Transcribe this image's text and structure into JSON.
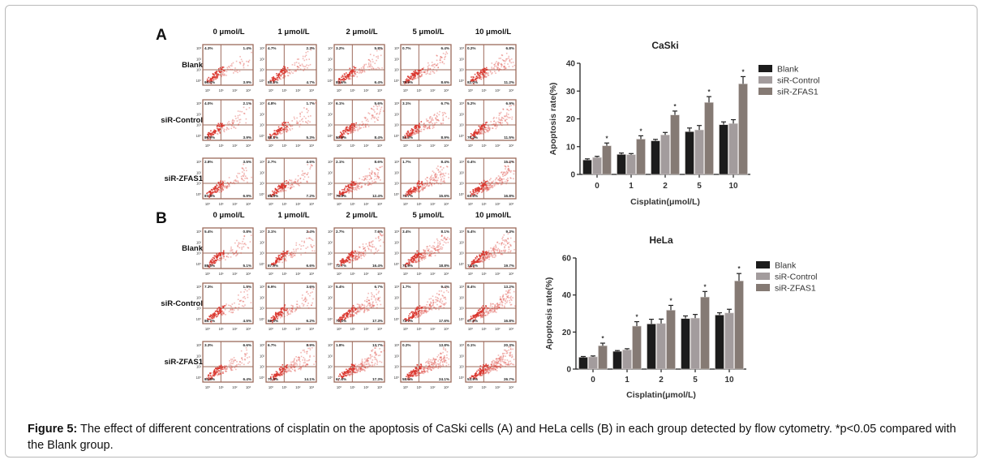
{
  "figure": {
    "caption_label": "Figure 5:",
    "caption_text": " The effect of different concentrations of cisplatin on the apoptosis of CaSki cells (A) and HeLa cells (B) in each group detected by flow cytometry. *p<0.05 compared with the Blank group."
  },
  "flow_cytometry": {
    "concentrations": [
      "0 μmol/L",
      "1 μmol/L",
      "2 μmol/L",
      "5 μmol/L",
      "10 μmol/L"
    ],
    "groups": [
      "Blank",
      "siR-Control",
      "siR-ZFAS1"
    ],
    "axis_ticks": [
      "10⁰",
      "10¹",
      "10²",
      "10³"
    ],
    "dot_color": "#d9342b",
    "frame_color": "#9c6a5a",
    "panels": [
      {
        "letter": "A",
        "cell_line": "CaSki",
        "plots": [
          [
            {
              "ul": "4.3%",
              "ur": "1.4%",
              "ll": "90.4%",
              "lr": "3.9%"
            },
            {
              "ul": "4.7%",
              "ur": "2.3%",
              "ll": "88.3%",
              "lr": "4.7%"
            },
            {
              "ul": "3.2%",
              "ur": "5.8%",
              "ll": "84.6%",
              "lr": "6.4%"
            },
            {
              "ul": "0.7%",
              "ur": "6.4%",
              "ll": "79.9%",
              "lr": "8.6%"
            },
            {
              "ul": "0.2%",
              "ur": "6.8%",
              "ll": "82.0%",
              "lr": "11.2%"
            }
          ],
          [
            {
              "ul": "4.0%",
              "ur": "2.1%",
              "ll": "89.9%",
              "lr": "3.9%"
            },
            {
              "ul": "4.8%",
              "ur": "1.7%",
              "ll": "88.1%",
              "lr": "5.3%"
            },
            {
              "ul": "6.1%",
              "ur": "5.6%",
              "ll": "83.9%",
              "lr": "8.4%"
            },
            {
              "ul": "3.1%",
              "ur": "6.7%",
              "ll": "81.3%",
              "lr": "8.9%"
            },
            {
              "ul": "5.2%",
              "ur": "6.9%",
              "ll": "76.4%",
              "lr": "11.5%"
            }
          ],
          [
            {
              "ul": "2.8%",
              "ur": "3.5%",
              "ll": "87.8%",
              "lr": "6.9%"
            },
            {
              "ul": "2.7%",
              "ur": "4.6%",
              "ll": "85.5%",
              "lr": "7.2%"
            },
            {
              "ul": "2.1%",
              "ur": "8.6%",
              "ll": "76.9%",
              "lr": "12.4%"
            },
            {
              "ul": "1.7%",
              "ur": "8.4%",
              "ll": "73.7%",
              "lr": "15.6%"
            },
            {
              "ul": "0.4%",
              "ur": "15.2%",
              "ll": "67.6%",
              "lr": "16.8%"
            }
          ]
        ]
      },
      {
        "letter": "B",
        "cell_line": "HeLa",
        "plots": [
          [
            {
              "ul": "5.4%",
              "ur": "0.8%",
              "ll": "88.6%",
              "lr": "5.1%"
            },
            {
              "ul": "3.1%",
              "ur": "2.4%",
              "ll": "87.9%",
              "lr": "6.6%"
            },
            {
              "ul": "2.7%",
              "ur": "7.6%",
              "ll": "72.7%",
              "lr": "16.4%"
            },
            {
              "ul": "3.4%",
              "ur": "8.1%",
              "ll": "72.6%",
              "lr": "18.8%"
            },
            {
              "ul": "5.4%",
              "ur": "9.3%",
              "ll": "74.6%",
              "lr": "19.7%"
            }
          ],
          [
            {
              "ul": "7.3%",
              "ur": "1.5%",
              "ll": "86.7%",
              "lr": "4.5%"
            },
            {
              "ul": "6.9%",
              "ur": "3.6%",
              "ll": "86.3%",
              "lr": "6.2%"
            },
            {
              "ul": "5.4%",
              "ur": "6.7%",
              "ll": "70.6%",
              "lr": "17.3%"
            },
            {
              "ul": "1.7%",
              "ur": "9.4%",
              "ll": "72.7%",
              "lr": "17.6%"
            },
            {
              "ul": "8.4%",
              "ur": "13.2%",
              "ll": "67.6%",
              "lr": "16.8%"
            }
          ],
          [
            {
              "ul": "3.3%",
              "ur": "6.6%",
              "ll": "84.6%",
              "lr": "6.4%"
            },
            {
              "ul": "6.7%",
              "ur": "8.9%",
              "ll": "70.0%",
              "lr": "14.1%"
            },
            {
              "ul": "1.8%",
              "ur": "13.7%",
              "ll": "67.6%",
              "lr": "17.3%"
            },
            {
              "ul": "0.2%",
              "ur": "13.8%",
              "ll": "58.6%",
              "lr": "24.1%"
            },
            {
              "ul": "0.1%",
              "ur": "20.3%",
              "ll": "53.9%",
              "lr": "26.7%"
            }
          ]
        ]
      }
    ]
  },
  "chart_data": [
    {
      "type": "bar",
      "title": "CaSki",
      "xlabel": "Cisplatin(μmol/L)",
      "ylabel": "Apoptosis rate(%)",
      "categories": [
        "0",
        "1",
        "2",
        "5",
        "10"
      ],
      "ylim": [
        0,
        40
      ],
      "yticks": [
        0,
        10,
        20,
        30,
        40
      ],
      "legend": "right",
      "grid": false,
      "series": [
        {
          "name": "Blank",
          "color": "#1c1c1c",
          "values": [
            5.2,
            7.2,
            12.1,
            15.4,
            17.9
          ],
          "errors": [
            0.4,
            0.5,
            0.5,
            1.3,
            1.0
          ],
          "significant": [
            false,
            false,
            false,
            false,
            false
          ]
        },
        {
          "name": "siR-Control",
          "color": "#a39c9d",
          "values": [
            6.1,
            7.1,
            14.2,
            16.0,
            18.3
          ],
          "errors": [
            0.4,
            0.4,
            0.9,
            1.6,
            1.4
          ],
          "significant": [
            false,
            false,
            false,
            false,
            false
          ]
        },
        {
          "name": "siR-ZFAS1",
          "color": "#857a74",
          "values": [
            10.3,
            12.7,
            21.4,
            25.9,
            32.6
          ],
          "errors": [
            1.0,
            1.2,
            1.4,
            2.1,
            2.6
          ],
          "significant": [
            true,
            true,
            true,
            true,
            true
          ]
        }
      ]
    },
    {
      "type": "bar",
      "title": "HeLa",
      "xlabel": "Cisplatin(μmol/L)",
      "ylabel": "Apoptosis rate(%)",
      "categories": [
        "0",
        "1",
        "2",
        "5",
        "10"
      ],
      "ylim": [
        0,
        60
      ],
      "yticks": [
        0,
        20,
        40,
        60
      ],
      "legend": "right",
      "grid": false,
      "series": [
        {
          "name": "Blank",
          "color": "#1c1c1c",
          "values": [
            6.4,
            9.6,
            24.4,
            27.3,
            29.2
          ],
          "errors": [
            0.4,
            0.4,
            2.5,
            1.4,
            1.2
          ],
          "significant": [
            false,
            false,
            false,
            false,
            false
          ]
        },
        {
          "name": "siR-Control",
          "color": "#a39c9d",
          "values": [
            6.6,
            10.4,
            24.6,
            27.5,
            30.3
          ],
          "errors": [
            0.5,
            0.6,
            2.4,
            2.0,
            2.0
          ],
          "significant": [
            false,
            false,
            false,
            false,
            false
          ]
        },
        {
          "name": "siR-ZFAS1",
          "color": "#857a74",
          "values": [
            12.6,
            23.2,
            31.8,
            38.9,
            47.6
          ],
          "errors": [
            1.4,
            2.4,
            2.6,
            3.0,
            4.0
          ],
          "significant": [
            true,
            true,
            true,
            true,
            true
          ]
        }
      ]
    }
  ]
}
